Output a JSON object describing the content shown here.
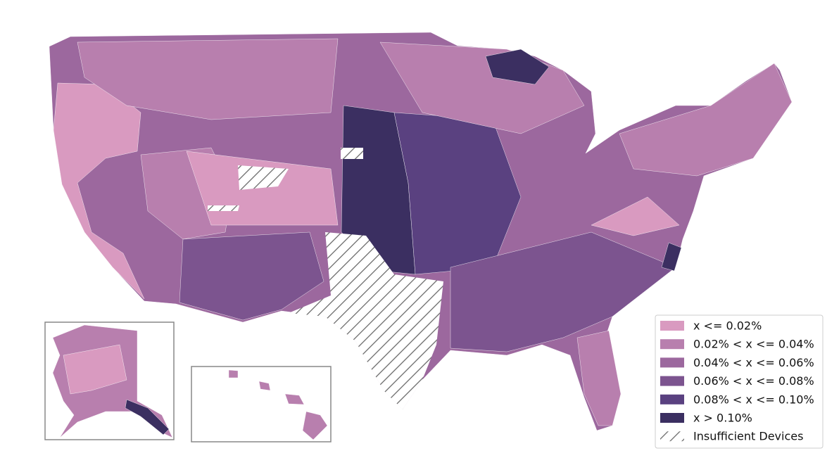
{
  "legend": {
    "items": [
      {
        "label": "x <= 0.02%",
        "color": "#d99ac0"
      },
      {
        "label": "0.02% < x <= 0.04%",
        "color": "#b87fae"
      },
      {
        "label": "0.04% < x <= 0.06%",
        "color": "#9c689e"
      },
      {
        "label": "0.06% < x <= 0.08%",
        "color": "#7c548f"
      },
      {
        "label": "0.08% < x <= 0.10%",
        "color": "#5a4180"
      },
      {
        "label": "x > 0.10%",
        "color": "#3b2f61"
      },
      {
        "label": "Insufficient Devices"
      }
    ]
  }
}
